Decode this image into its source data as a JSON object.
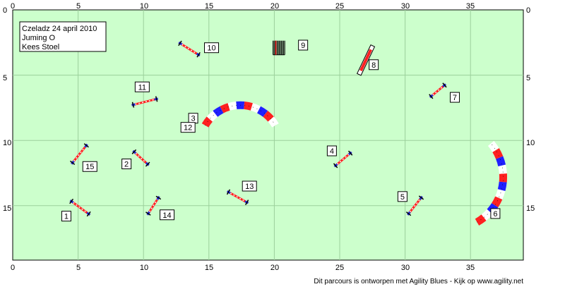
{
  "course": {
    "info": [
      "Czeladz 24 april 2010",
      "Juming O",
      "Kees Stoel"
    ],
    "footer": "Dit parcours is ontworpen met Agility Blues - Kijk op www.agility.net",
    "x_ticks": [
      "0",
      "5",
      "10",
      "15",
      "20",
      "25",
      "30",
      "35"
    ],
    "y_ticks": [
      "0",
      "5",
      "10",
      "15"
    ],
    "colors": {
      "field": "#ccffcc",
      "grid": "#9bd09b",
      "pole_red": "#ff2020",
      "pole_blue": "#1a2ce0",
      "tunnel_red": "#ff2020",
      "tunnel_blue": "#2020ff"
    },
    "obstacles": [
      {
        "number": "1",
        "type": "jump",
        "x1": 4.4,
        "y1": 14.6,
        "x2": 5.9,
        "y2": 15.7,
        "lx": 4.1,
        "ly": 15.8
      },
      {
        "number": "2",
        "type": "jump",
        "x1": 9.2,
        "y1": 10.8,
        "x2": 10.4,
        "y2": 11.9,
        "lx": 8.7,
        "ly": 11.8
      },
      {
        "number": "3",
        "type": "tunnel",
        "cx": 17.4,
        "cy": 10.4,
        "r": 3.1,
        "a1": 150,
        "a2": 30,
        "lx": 13.8,
        "ly": 8.3
      },
      {
        "number": "4",
        "type": "jump",
        "x1": 24.6,
        "y1": 12.0,
        "x2": 25.9,
        "y2": 10.9,
        "lx": 24.4,
        "ly": 10.8
      },
      {
        "number": "5",
        "type": "jump",
        "x1": 30.2,
        "y1": 15.7,
        "x2": 31.3,
        "y2": 14.3,
        "lx": 29.8,
        "ly": 14.3
      },
      {
        "number": "6",
        "type": "tunnel",
        "cx": 33.5,
        "cy": 12.8,
        "r": 4.0,
        "a1": -60,
        "a2": 40,
        "lx": 36.9,
        "ly": 15.6
      },
      {
        "number": "7",
        "type": "jump",
        "x1": 31.9,
        "y1": 6.7,
        "x2": 33.1,
        "y2": 5.7,
        "lx": 33.8,
        "ly": 6.7
      },
      {
        "number": "8",
        "type": "seesaw",
        "x1": 26.5,
        "y1": 4.9,
        "x2": 27.5,
        "y2": 2.8,
        "lx": 27.6,
        "ly": 4.2
      },
      {
        "number": "9",
        "type": "weave",
        "x1": 19.9,
        "y1": 2.9,
        "x2": 20.8,
        "y2": 2.9,
        "lx": 22.2,
        "ly": 2.7
      },
      {
        "number": "10",
        "type": "jump",
        "x1": 12.7,
        "y1": 2.5,
        "x2": 14.3,
        "y2": 3.5,
        "lx": 15.2,
        "ly": 2.9
      },
      {
        "number": "11",
        "type": "jump",
        "x1": 9.1,
        "y1": 7.3,
        "x2": 11.1,
        "y2": 6.8,
        "lx": 9.9,
        "ly": 5.9
      },
      {
        "number": "12",
        "type": "label",
        "lx": 13.4,
        "ly": 9.0
      },
      {
        "number": "13",
        "type": "jump",
        "x1": 16.4,
        "y1": 13.9,
        "x2": 18.0,
        "y2": 14.8,
        "lx": 18.1,
        "ly": 13.5
      },
      {
        "number": "14",
        "type": "jump",
        "x1": 10.3,
        "y1": 15.7,
        "x2": 11.2,
        "y2": 14.3,
        "lx": 11.8,
        "ly": 15.7
      },
      {
        "number": "15",
        "type": "jump",
        "x1": 4.5,
        "y1": 11.8,
        "x2": 5.7,
        "y2": 10.3,
        "lx": 5.9,
        "ly": 12.0
      }
    ]
  }
}
